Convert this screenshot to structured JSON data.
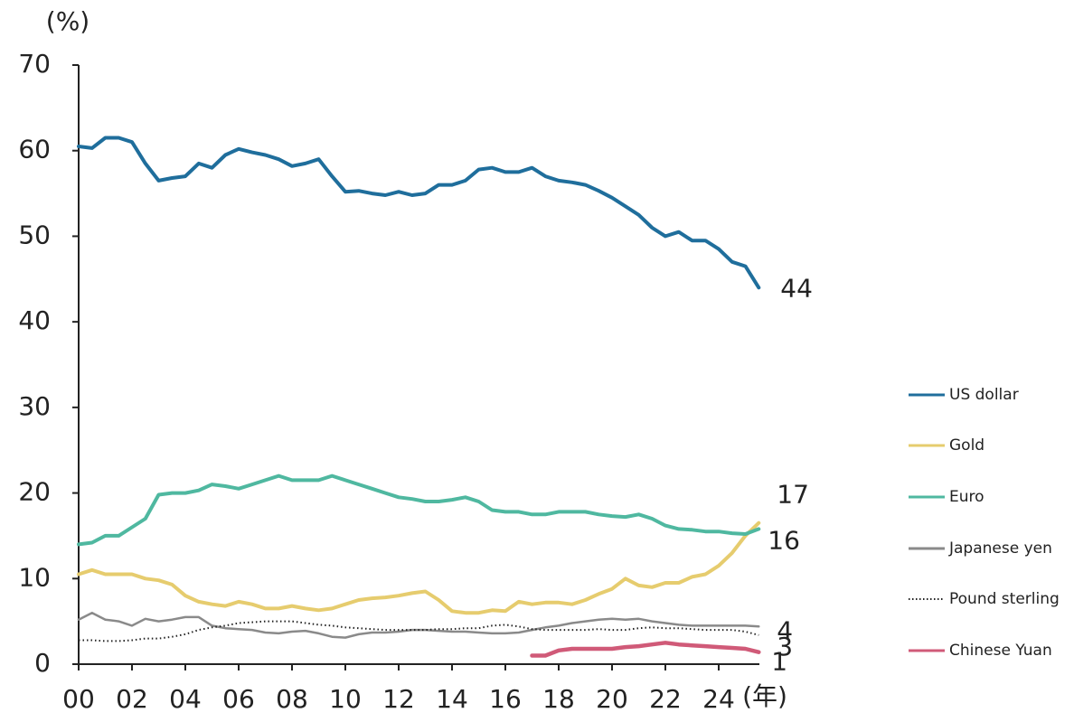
{
  "chart_data": {
    "type": "line",
    "y_label": "(%)",
    "x_label": "(年)",
    "x": [
      2000,
      2000.5,
      2001,
      2001.5,
      2002,
      2002.5,
      2003,
      2003.5,
      2004,
      2004.5,
      2005,
      2005.5,
      2006,
      2006.5,
      2007,
      2007.5,
      2008,
      2008.5,
      2009,
      2009.5,
      2010,
      2010.5,
      2011,
      2011.5,
      2012,
      2012.5,
      2013,
      2013.5,
      2014,
      2014.5,
      2015,
      2015.5,
      2016,
      2016.5,
      2017,
      2017.5,
      2018,
      2018.5,
      2019,
      2019.5,
      2020,
      2020.5,
      2021,
      2021.5,
      2022,
      2022.5,
      2023,
      2023.5,
      2024,
      2024.5,
      2025,
      2025.5
    ],
    "xlim": [
      2000,
      2025.6
    ],
    "xticks": [
      {
        "value": 2000,
        "label": "00"
      },
      {
        "value": 2002,
        "label": "02"
      },
      {
        "value": 2004,
        "label": "04"
      },
      {
        "value": 2006,
        "label": "06"
      },
      {
        "value": 2008,
        "label": "08"
      },
      {
        "value": 2010,
        "label": "10"
      },
      {
        "value": 2012,
        "label": "12"
      },
      {
        "value": 2014,
        "label": "14"
      },
      {
        "value": 2016,
        "label": "16"
      },
      {
        "value": 2018,
        "label": "18"
      },
      {
        "value": 2020,
        "label": "20"
      },
      {
        "value": 2022,
        "label": "22"
      },
      {
        "value": 2024,
        "label": "24"
      }
    ],
    "ylim": [
      0,
      70
    ],
    "yticks": [
      0,
      10,
      20,
      30,
      40,
      50,
      60,
      70
    ],
    "grid": false,
    "legend": "right",
    "series": [
      {
        "name": "US dollar",
        "color": "#1f6e9c",
        "end_label": "44",
        "values": [
          60.5,
          60.3,
          61.5,
          61.5,
          61,
          58.5,
          56.5,
          56.8,
          57,
          58.5,
          58,
          59.5,
          60.2,
          59.8,
          59.5,
          59,
          58.2,
          58.5,
          59,
          57,
          55.2,
          55.3,
          55,
          54.8,
          55.2,
          54.8,
          55,
          56,
          56,
          56.5,
          57.8,
          58,
          57.5,
          57.5,
          58,
          57,
          56.5,
          56.3,
          56,
          55.3,
          54.5,
          53.5,
          52.5,
          51,
          50,
          50.5,
          49.5,
          49.5,
          48.5,
          47,
          46.5,
          44
        ]
      },
      {
        "name": "Gold",
        "color": "#e6cc6e",
        "end_label": "17",
        "values": [
          10.5,
          11,
          10.5,
          10.5,
          10.5,
          10,
          9.8,
          9.3,
          8,
          7.3,
          7,
          6.8,
          7.3,
          7,
          6.5,
          6.5,
          6.8,
          6.5,
          6.3,
          6.5,
          7,
          7.5,
          7.7,
          7.8,
          8,
          8.3,
          8.5,
          7.5,
          6.2,
          6,
          6,
          6.3,
          6.2,
          7.3,
          7,
          7.2,
          7.2,
          7,
          7.5,
          8.2,
          8.8,
          10,
          9.2,
          9,
          9.5,
          9.5,
          10.2,
          10.5,
          11.5,
          13,
          15,
          16.5
        ]
      },
      {
        "name": "Euro",
        "color": "#4fb8a0",
        "end_label": "16",
        "values": [
          14,
          14.2,
          15,
          15,
          16,
          17,
          19.8,
          20,
          20,
          20.3,
          21,
          20.8,
          20.5,
          21,
          21.5,
          22,
          21.5,
          21.5,
          21.5,
          22,
          21.5,
          21,
          20.5,
          20,
          19.5,
          19.3,
          19,
          19,
          19.2,
          19.5,
          19,
          18,
          17.8,
          17.8,
          17.5,
          17.5,
          17.8,
          17.8,
          17.8,
          17.5,
          17.3,
          17.2,
          17.5,
          17,
          16.2,
          15.8,
          15.7,
          15.5,
          15.5,
          15.3,
          15.2,
          15.8
        ]
      },
      {
        "name": "Japanese yen",
        "color": "#8a8a8a",
        "end_label": "4",
        "values": [
          5.2,
          6,
          5.2,
          5,
          4.5,
          5.3,
          5,
          5.2,
          5.5,
          5.5,
          4.5,
          4.2,
          4.1,
          4,
          3.7,
          3.6,
          3.8,
          3.9,
          3.6,
          3.2,
          3.1,
          3.5,
          3.7,
          3.7,
          3.8,
          4,
          4,
          3.9,
          3.8,
          3.8,
          3.7,
          3.6,
          3.6,
          3.7,
          4,
          4.3,
          4.5,
          4.8,
          5,
          5.2,
          5.3,
          5.2,
          5.3,
          5,
          4.8,
          4.6,
          4.5,
          4.5,
          4.5,
          4.5,
          4.5,
          4.4
        ]
      },
      {
        "name": "Pound sterling",
        "color": "#222222",
        "dash": "dotted",
        "end_label": "3",
        "values": [
          2.8,
          2.8,
          2.7,
          2.7,
          2.8,
          3,
          3,
          3.2,
          3.5,
          4,
          4.3,
          4.5,
          4.8,
          4.9,
          5,
          5,
          5,
          4.8,
          4.6,
          4.5,
          4.3,
          4.2,
          4.1,
          4,
          4,
          4,
          4,
          4.1,
          4.1,
          4.2,
          4.2,
          4.5,
          4.6,
          4.4,
          4.1,
          4,
          4,
          4,
          4,
          4.1,
          4,
          4,
          4.2,
          4.3,
          4.2,
          4.2,
          4.1,
          4,
          4,
          4,
          3.8,
          3.4
        ]
      },
      {
        "name": "Chinese Yuan",
        "color": "#d05a78",
        "end_label": "1",
        "values": [
          null,
          null,
          null,
          null,
          null,
          null,
          null,
          null,
          null,
          null,
          null,
          null,
          null,
          null,
          null,
          null,
          null,
          null,
          null,
          null,
          null,
          null,
          null,
          null,
          null,
          null,
          null,
          null,
          null,
          null,
          null,
          null,
          null,
          null,
          1.0,
          1.0,
          1.6,
          1.8,
          1.8,
          1.8,
          1.8,
          2,
          2.1,
          2.3,
          2.5,
          2.3,
          2.2,
          2.1,
          2,
          1.9,
          1.8,
          1.4
        ]
      }
    ]
  }
}
